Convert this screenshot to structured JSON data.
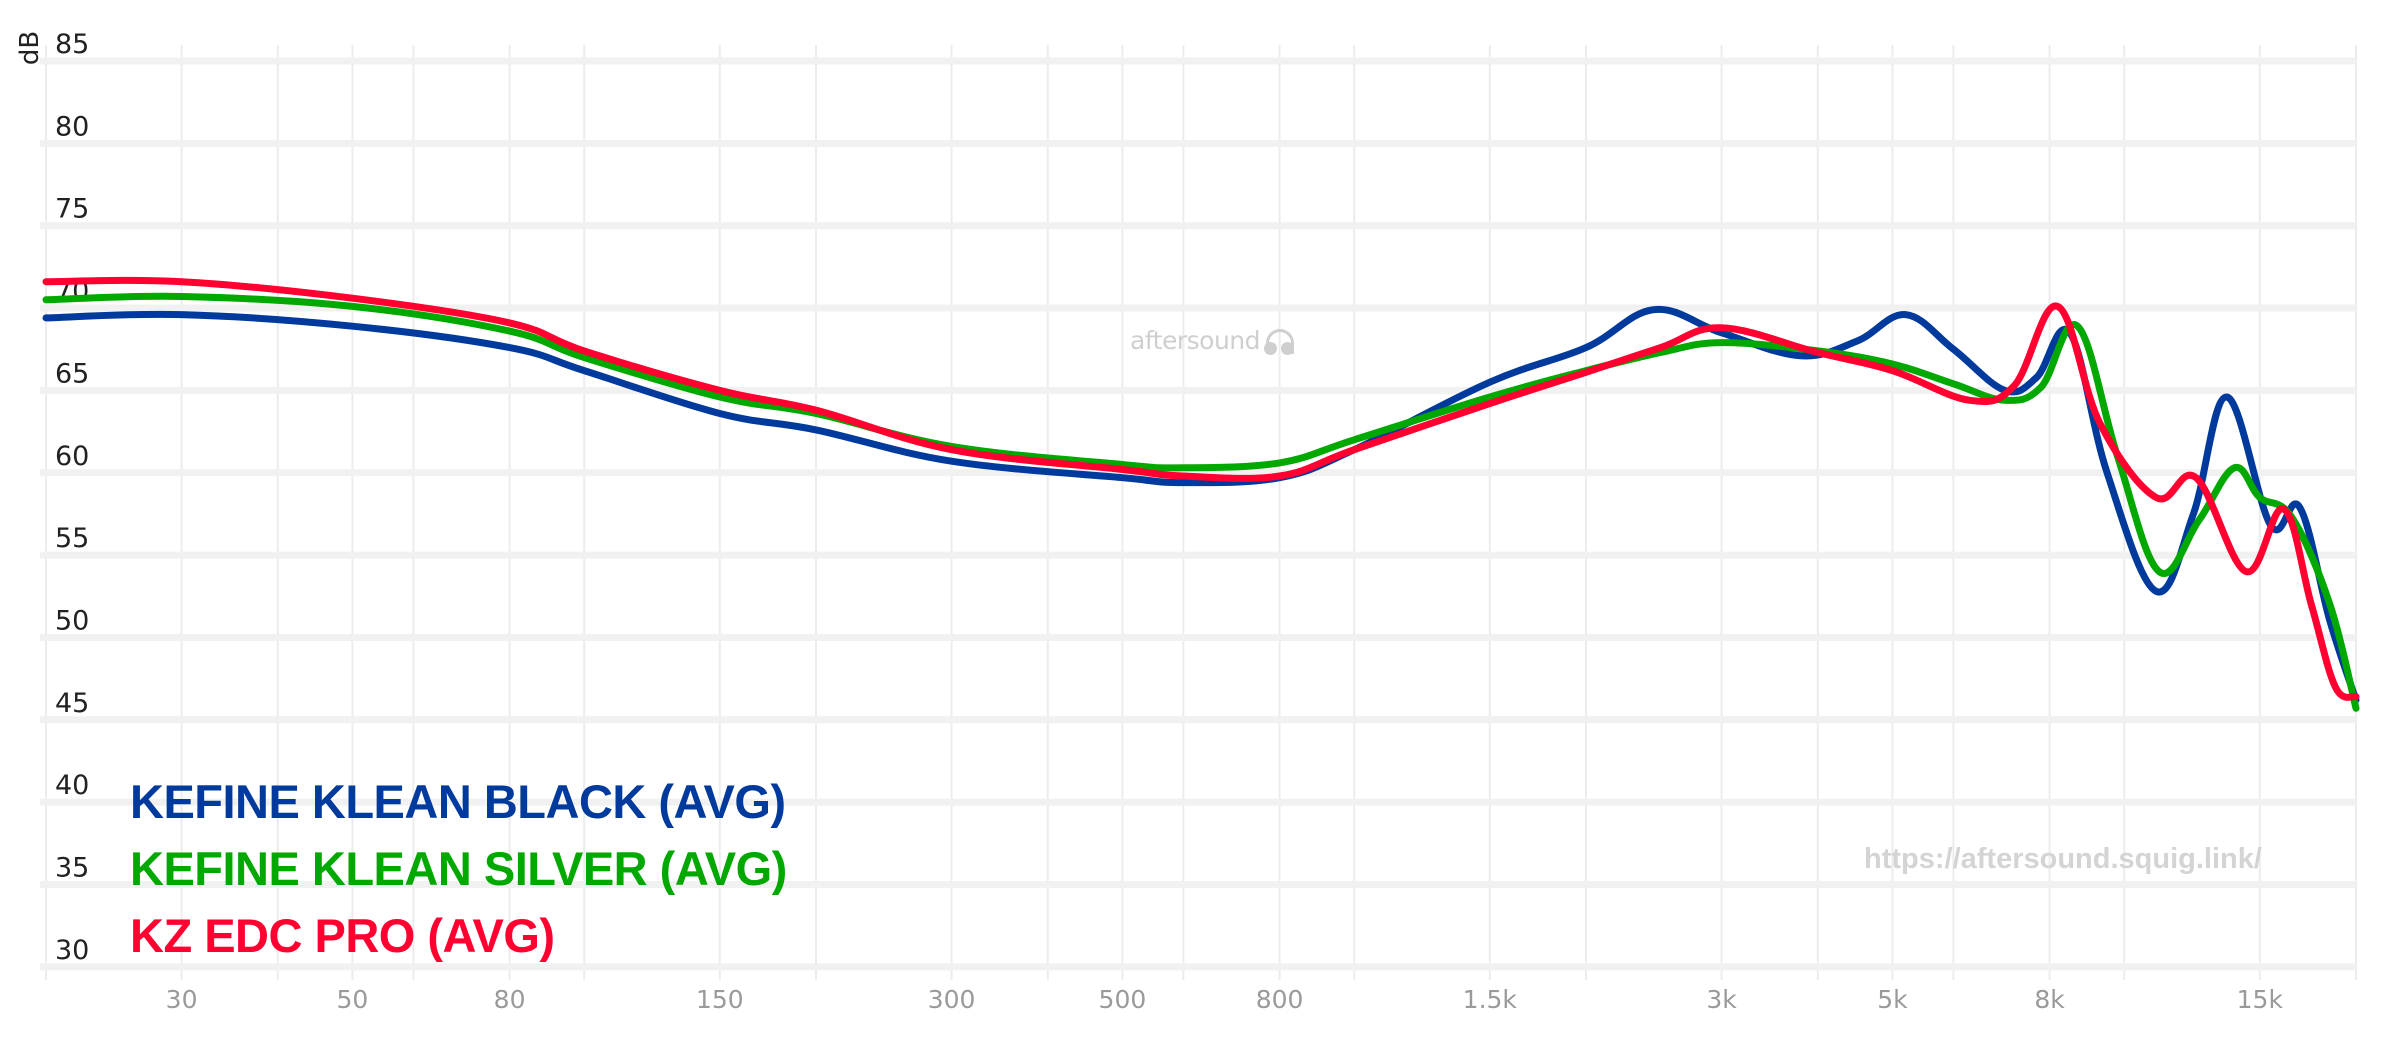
{
  "chart_data": {
    "type": "line",
    "title": "",
    "xlabel": "",
    "ylabel": "dB",
    "xscale": "log",
    "xlim": [
      20,
      20000
    ],
    "ylim": [
      30,
      85
    ],
    "grid": true,
    "legend_position": "bottom-left",
    "y_ticks": [
      85,
      80,
      75,
      70,
      65,
      60,
      55,
      50,
      45,
      40,
      35,
      30
    ],
    "x_ticks": [
      {
        "value": 30,
        "label": "30"
      },
      {
        "value": 50,
        "label": "50"
      },
      {
        "value": 80,
        "label": "80"
      },
      {
        "value": 150,
        "label": "150"
      },
      {
        "value": 300,
        "label": "300"
      },
      {
        "value": 500,
        "label": "500"
      },
      {
        "value": 800,
        "label": "800"
      },
      {
        "value": 1500,
        "label": "1.5k"
      },
      {
        "value": 3000,
        "label": "3k"
      },
      {
        "value": 5000,
        "label": "5k"
      },
      {
        "value": 8000,
        "label": "8k"
      },
      {
        "value": 15000,
        "label": "15k"
      }
    ],
    "x_minor_grid": [
      20,
      30,
      40,
      50,
      60,
      80,
      100,
      150,
      200,
      300,
      400,
      500,
      600,
      800,
      1000,
      1500,
      2000,
      3000,
      4000,
      5000,
      6000,
      8000,
      10000,
      15000,
      20000
    ],
    "series": [
      {
        "name": "KEFINE KLEAN BLACK (AVG)",
        "color": "#003a9c",
        "points": [
          [
            20,
            69.4
          ],
          [
            30,
            69.6
          ],
          [
            50,
            68.9
          ],
          [
            80,
            67.6
          ],
          [
            100,
            66.2
          ],
          [
            150,
            63.6
          ],
          [
            200,
            62.6
          ],
          [
            300,
            60.7
          ],
          [
            500,
            59.7
          ],
          [
            600,
            59.4
          ],
          [
            800,
            59.7
          ],
          [
            1000,
            61.4
          ],
          [
            1500,
            65.5
          ],
          [
            2000,
            67.6
          ],
          [
            2450,
            69.9
          ],
          [
            3000,
            68.5
          ],
          [
            3800,
            67.1
          ],
          [
            4500,
            68.0
          ],
          [
            5200,
            69.6
          ],
          [
            6000,
            67.5
          ],
          [
            7000,
            65.0
          ],
          [
            7700,
            65.8
          ],
          [
            8500,
            68.5
          ],
          [
            9500,
            60.0
          ],
          [
            11000,
            52.8
          ],
          [
            12300,
            57.5
          ],
          [
            13600,
            64.6
          ],
          [
            15500,
            56.8
          ],
          [
            16900,
            57.9
          ],
          [
            18500,
            51.0
          ],
          [
            20000,
            46.2
          ]
        ]
      },
      {
        "name": "KEFINE KLEAN SILVER (AVG)",
        "color": "#00a800",
        "points": [
          [
            20,
            70.5
          ],
          [
            30,
            70.7
          ],
          [
            50,
            70.1
          ],
          [
            80,
            68.6
          ],
          [
            100,
            67.0
          ],
          [
            150,
            64.6
          ],
          [
            200,
            63.6
          ],
          [
            300,
            61.6
          ],
          [
            500,
            60.5
          ],
          [
            600,
            60.3
          ],
          [
            800,
            60.6
          ],
          [
            1000,
            62.0
          ],
          [
            1500,
            64.6
          ],
          [
            2000,
            66.2
          ],
          [
            2500,
            67.3
          ],
          [
            3000,
            67.9
          ],
          [
            4000,
            67.4
          ],
          [
            5000,
            66.6
          ],
          [
            6000,
            65.4
          ],
          [
            7000,
            64.4
          ],
          [
            7800,
            65.2
          ],
          [
            8700,
            68.9
          ],
          [
            9800,
            61.0
          ],
          [
            11100,
            54.0
          ],
          [
            12500,
            57.1
          ],
          [
            13900,
            60.3
          ],
          [
            15000,
            58.5
          ],
          [
            16500,
            57.3
          ],
          [
            18500,
            52.0
          ],
          [
            20000,
            45.7
          ]
        ]
      },
      {
        "name": "KZ EDC PRO (AVG)",
        "color": "#ff0030",
        "points": [
          [
            20,
            71.6
          ],
          [
            30,
            71.6
          ],
          [
            50,
            70.6
          ],
          [
            80,
            69.1
          ],
          [
            100,
            67.4
          ],
          [
            150,
            65.0
          ],
          [
            200,
            63.8
          ],
          [
            300,
            61.4
          ],
          [
            500,
            60.2
          ],
          [
            600,
            59.8
          ],
          [
            800,
            59.8
          ],
          [
            1000,
            61.4
          ],
          [
            1500,
            64.2
          ],
          [
            2000,
            66.1
          ],
          [
            2500,
            67.6
          ],
          [
            3000,
            68.8
          ],
          [
            4000,
            67.3
          ],
          [
            5000,
            66.2
          ],
          [
            6300,
            64.4
          ],
          [
            7200,
            65.3
          ],
          [
            8200,
            70.1
          ],
          [
            9300,
            63.0
          ],
          [
            11000,
            58.5
          ],
          [
            12400,
            59.7
          ],
          [
            14400,
            54.0
          ],
          [
            16100,
            57.8
          ],
          [
            17500,
            52.0
          ],
          [
            18800,
            47.0
          ],
          [
            20000,
            46.4
          ]
        ]
      }
    ],
    "annotations": [
      "aftersound",
      "https://aftersound.squig.link/"
    ]
  },
  "axis": {
    "y_title": "dB"
  },
  "legend": [
    {
      "label": "KEFINE KLEAN BLACK (AVG)",
      "color": "#003a9c"
    },
    {
      "label": "KEFINE KLEAN SILVER (AVG)",
      "color": "#00a800"
    },
    {
      "label": "KZ EDC PRO (AVG)",
      "color": "#ff0030"
    }
  ],
  "watermark": {
    "text": "aftersound",
    "icon": "headphones-icon"
  },
  "url_label": "https://aftersound.squig.link/"
}
